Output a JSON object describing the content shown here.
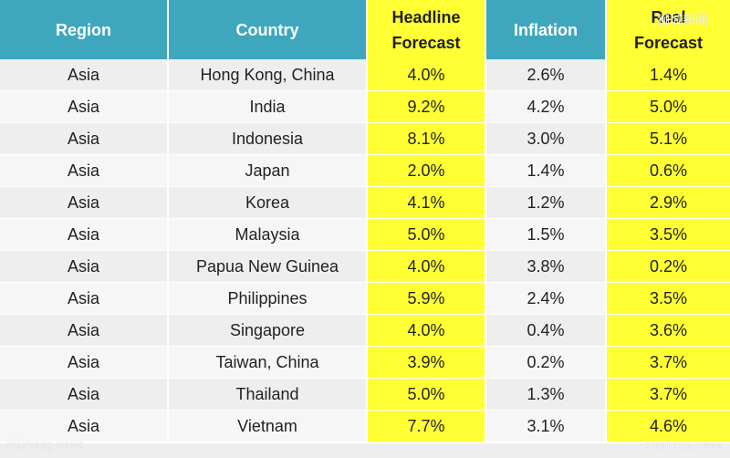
{
  "headers": {
    "region": "Region",
    "country": "Country",
    "headline_line1": "Headline",
    "headline_line2": "Forecast",
    "inflation": "Inflation",
    "real_line1": "Real",
    "real_line2": "Forecast"
  },
  "rows": [
    {
      "region": "Asia",
      "country": "Hong Kong, China",
      "headline": "4.0%",
      "inflation": "2.6%",
      "real": "1.4%"
    },
    {
      "region": "Asia",
      "country": "India",
      "headline": "9.2%",
      "inflation": "4.2%",
      "real": "5.0%"
    },
    {
      "region": "Asia",
      "country": "Indonesia",
      "headline": "8.1%",
      "inflation": "3.0%",
      "real": "5.1%"
    },
    {
      "region": "Asia",
      "country": "Japan",
      "headline": "2.0%",
      "inflation": "1.4%",
      "real": "0.6%"
    },
    {
      "region": "Asia",
      "country": "Korea",
      "headline": "4.1%",
      "inflation": "1.2%",
      "real": "2.9%"
    },
    {
      "region": "Asia",
      "country": "Malaysia",
      "headline": "5.0%",
      "inflation": "1.5%",
      "real": "3.5%"
    },
    {
      "region": "Asia",
      "country": "Papua New Guinea",
      "headline": "4.0%",
      "inflation": "3.8%",
      "real": "0.2%"
    },
    {
      "region": "Asia",
      "country": "Philippines",
      "headline": "5.9%",
      "inflation": "2.4%",
      "real": "3.5%"
    },
    {
      "region": "Asia",
      "country": "Singapore",
      "headline": "4.0%",
      "inflation": "0.4%",
      "real": "3.6%"
    },
    {
      "region": "Asia",
      "country": "Taiwan, China",
      "headline": "3.9%",
      "inflation": "0.2%",
      "real": "3.7%"
    },
    {
      "region": "Asia",
      "country": "Thailand",
      "headline": "5.0%",
      "inflation": "1.3%",
      "real": "3.7%"
    },
    {
      "region": "Asia",
      "country": "Vietnam",
      "headline": "7.7%",
      "inflation": "3.1%",
      "real": "4.6%"
    }
  ],
  "watermarks": {
    "top_right": "狮城新闻",
    "bottom_left": "shicheng news",
    "bottom_right": "shicheng news"
  },
  "colors": {
    "header_bg": "#3fa7bd",
    "highlight": "#ffff33",
    "row_bg": "#eeeeee"
  }
}
